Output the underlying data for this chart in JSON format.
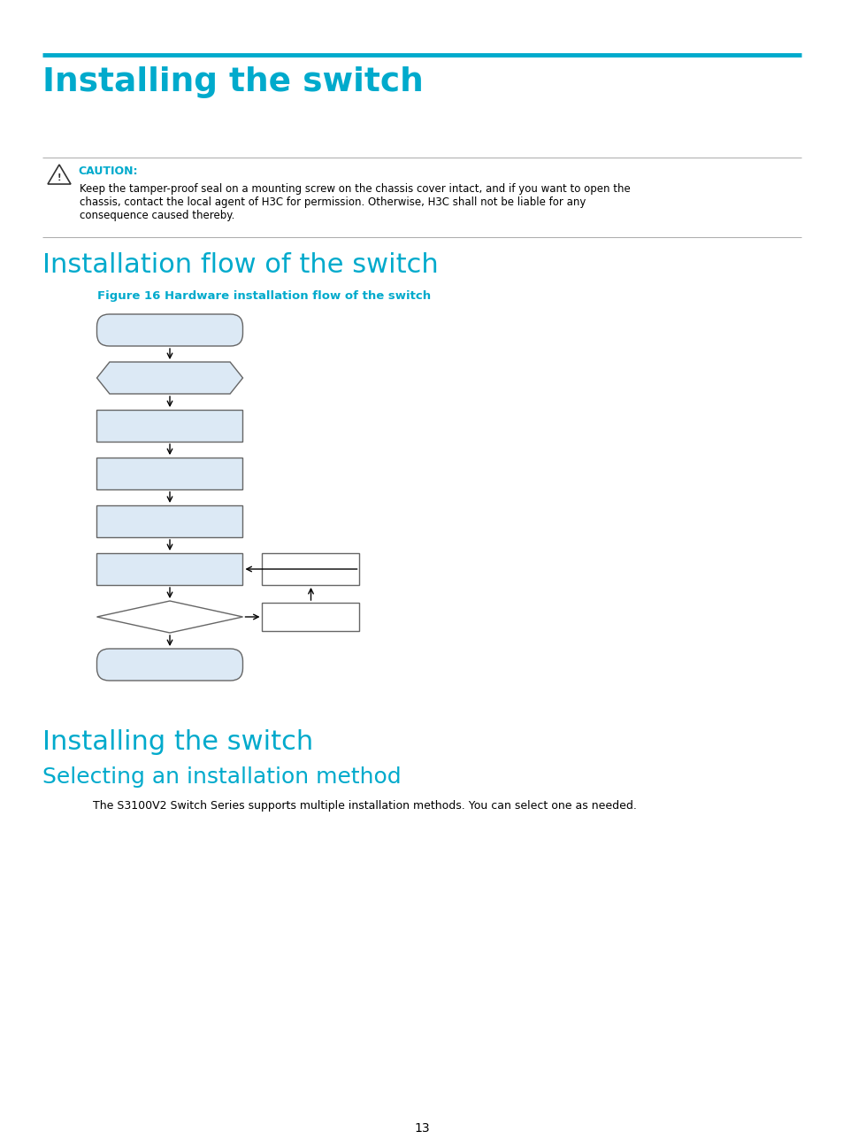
{
  "page_bg": "#ffffff",
  "h1_color": "#00aacc",
  "h2_color": "#00aacc",
  "h3_color": "#00aacc",
  "caution_color": "#00aacc",
  "text_color": "#000000",
  "figure_caption_color": "#00aacc",
  "shape_fill": "#dce9f5",
  "shape_edge": "#666666",
  "arrow_color": "#000000",
  "line_color": "#00aacc",
  "title_h1": "Installing the switch",
  "section1": "Installation flow of the switch",
  "figure_caption": "Figure 16 Hardware installation flow of the switch",
  "section2": "Installing the switch",
  "section3": "Selecting an installation method",
  "body_text": "The S3100V2 Switch Series supports multiple installation methods. You can select one as needed.",
  "caution_label": "CAUTION:",
  "caution_body1": "Keep the tamper-proof seal on a mounting screw on the chassis cover intact, and if you want to open the",
  "caution_body2": "chassis, contact the local agent of H3C for permission. Otherwise, H3C shall not be liable for any",
  "caution_body3": "consequence caused thereby.",
  "page_number": "13"
}
